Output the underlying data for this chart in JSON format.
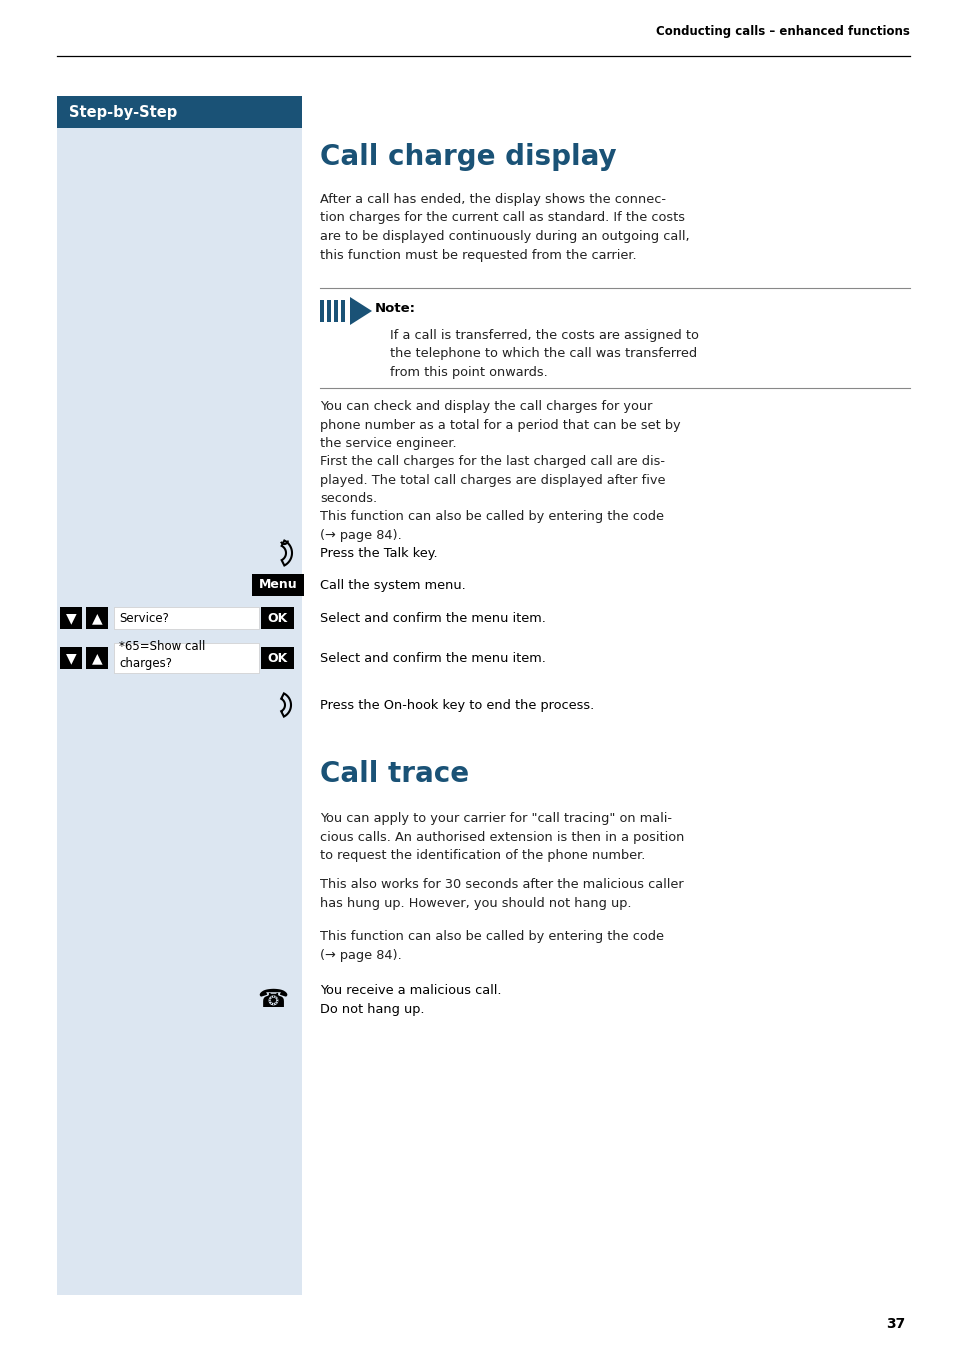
{
  "page_bg": "#ffffff",
  "sidebar_bg": "#dce6f1",
  "header_bar_color": "#1a5276",
  "header_text": "Step-by-Step",
  "top_right_text": "Conducting calls – enhanced functions",
  "section1_title": "Call charge display",
  "section1_body1": "After a call has ended, the display shows the connec-\ntion charges for the current call as standard. If the costs\nare to be displayed continuously during an outgoing call,\nthis function must be requested from the carrier.",
  "note_label": "Note:",
  "note_body": "If a call is transferred, the costs are assigned to\nthe telephone to which the call was transferred\nfrom this point onwards.",
  "section1_body2": "You can check and display the call charges for your\nphone number as a total for a period that can be set by\nthe service engineer.\nFirst the call charges for the last charged call are dis-\nplayed. The total call charges are displayed after five\nseconds.",
  "section1_body3": "This function can also be called by entering the code\n(→ page 84).",
  "section2_title": "Call trace",
  "section2_body1": "You can apply to your carrier for \"call tracing\" on mali-\ncious calls. An authorised extension is then in a position\nto request the identification of the phone number.",
  "section2_body2": "This also works for 30 seconds after the malicious caller\nhas hung up. However, you should not hang up.",
  "section2_body3": "This function can also be called by entering the code\n(→ page 84).",
  "section2_step": "You receive a malicious call.\nDo not hang up.",
  "page_number": "37",
  "title_color": "#1a5276",
  "body_color": "#222222",
  "note_arrow_color": "#1a5276",
  "note_line_color": "#aaaaaa",
  "step1_desc": "Press the Talk key.",
  "step2_desc": "Call the system menu.",
  "step3_label": "Service?",
  "step3_desc": "Select and confirm the menu item.",
  "step4_label": "*65=Show call\ncharges?",
  "step4_desc": "Select and confirm the menu item.",
  "step5_desc": "Press the On-hook key to end the process."
}
